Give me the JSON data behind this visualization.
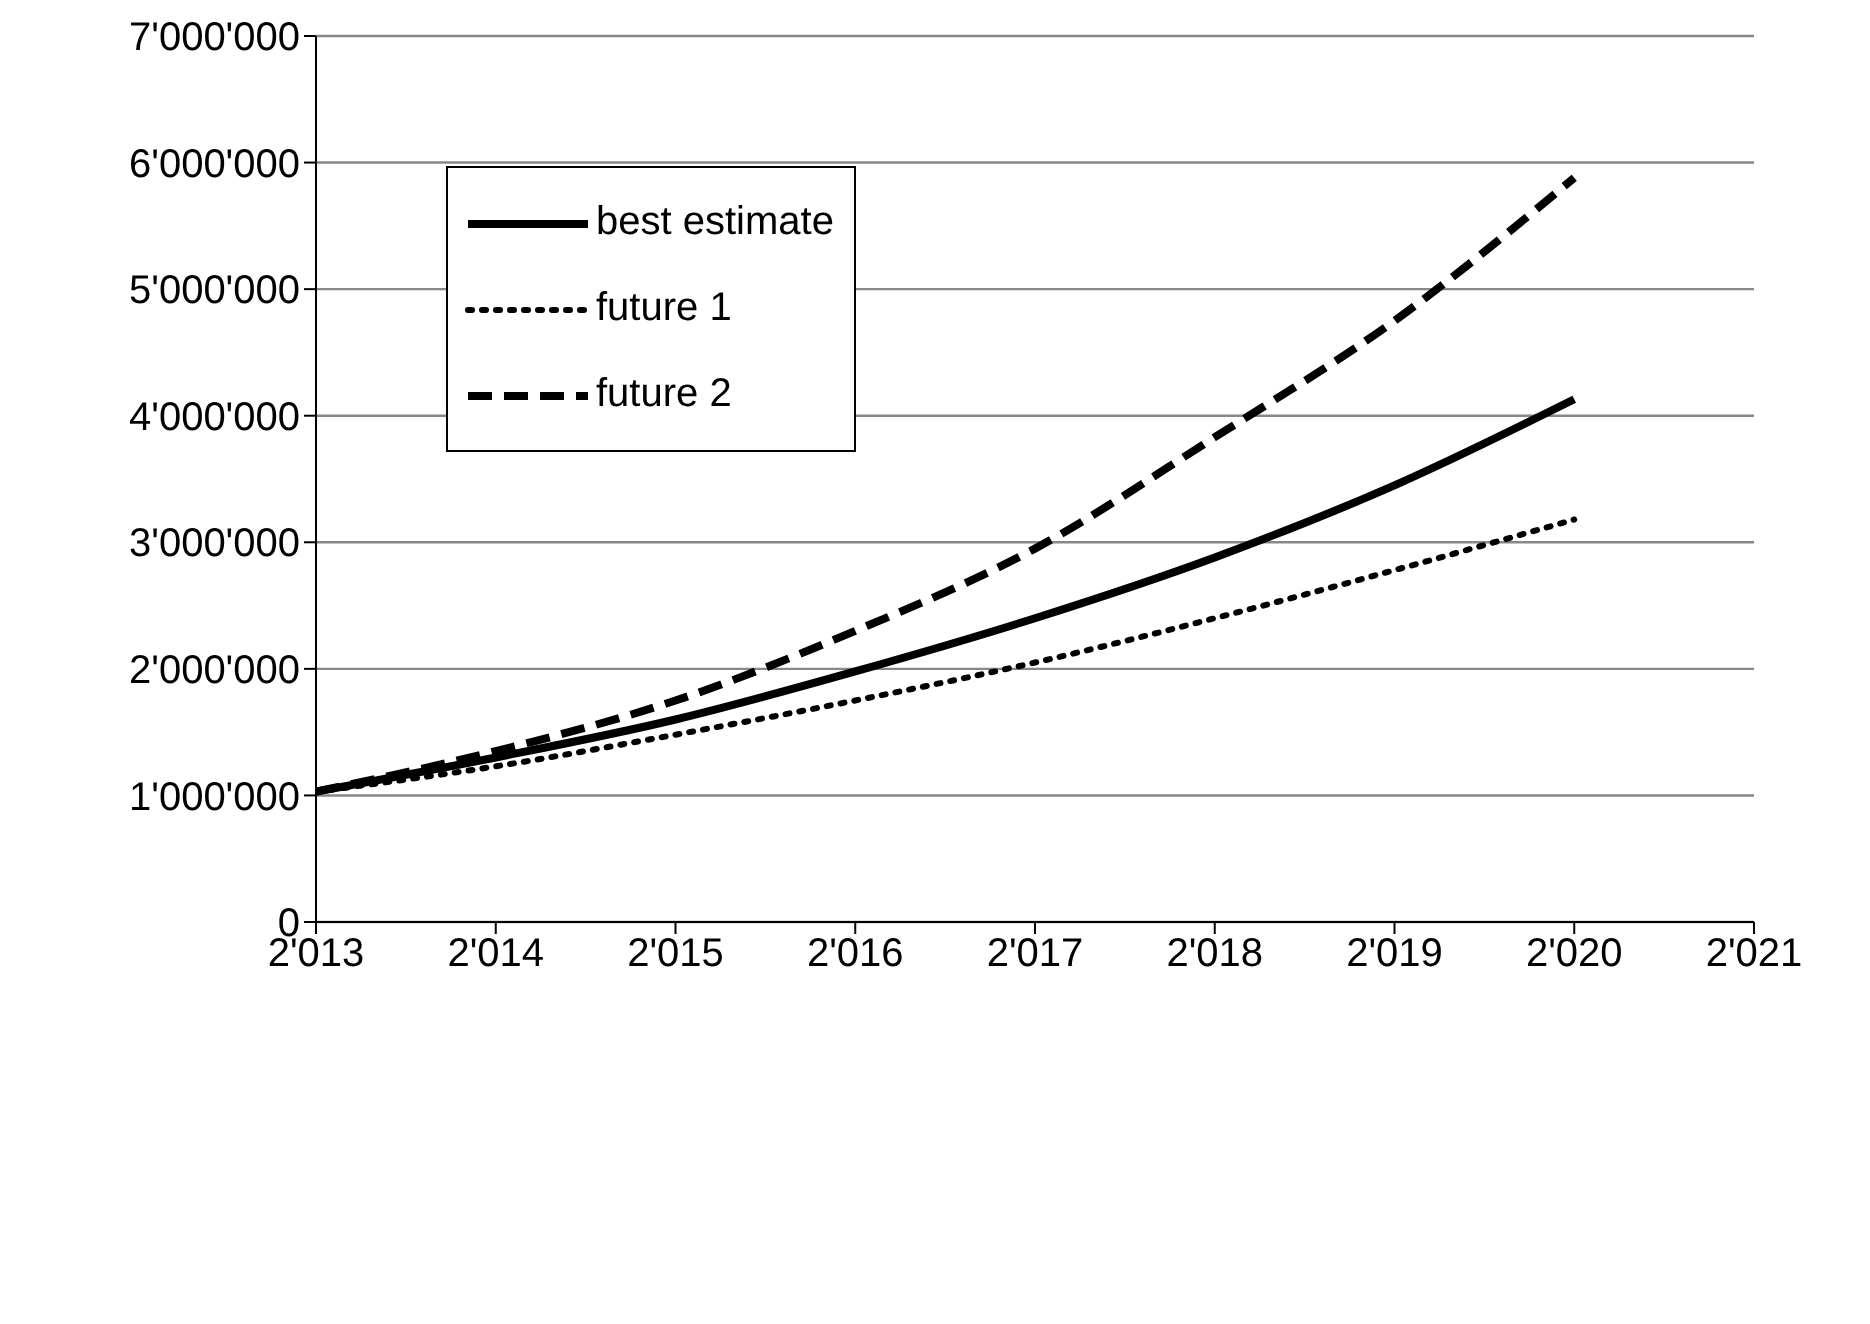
{
  "chart_data": {
    "type": "line",
    "x": [
      2013,
      2014,
      2015,
      2016,
      2017,
      2018,
      2019,
      2020
    ],
    "series": [
      {
        "name": "best estimate",
        "color": "#000000",
        "line_style": "solid",
        "values": [
          1030000,
          1300000,
          1600000,
          1980000,
          2400000,
          2880000,
          3450000,
          4130000
        ]
      },
      {
        "name": "future 1",
        "color": "#000000",
        "line_style": "dotted",
        "values": [
          1030000,
          1230000,
          1480000,
          1750000,
          2050000,
          2400000,
          2780000,
          3180000
        ]
      },
      {
        "name": "future 2",
        "color": "#000000",
        "line_style": "dashed",
        "values": [
          1030000,
          1350000,
          1750000,
          2300000,
          2950000,
          3830000,
          4750000,
          5880000
        ]
      }
    ],
    "xlim": [
      2013,
      2021
    ],
    "xticks": [
      {
        "value": 2013,
        "label": "2'013"
      },
      {
        "value": 2014,
        "label": "2'014"
      },
      {
        "value": 2015,
        "label": "2'015"
      },
      {
        "value": 2016,
        "label": "2'016"
      },
      {
        "value": 2017,
        "label": "2'017"
      },
      {
        "value": 2018,
        "label": "2'018"
      },
      {
        "value": 2019,
        "label": "2'019"
      },
      {
        "value": 2020,
        "label": "2'020"
      },
      {
        "value": 2021,
        "label": "2'021"
      }
    ],
    "ylim": [
      0,
      7000000
    ],
    "yticks": [
      0,
      {
        "value": 1000000,
        "label": "1'000'000"
      },
      {
        "value": 2000000,
        "label": "2'000'000"
      },
      {
        "value": 3000000,
        "label": "3'000'000"
      },
      {
        "value": 4000000,
        "label": "4'000'000"
      },
      {
        "value": 5000000,
        "label": "5'000'000"
      },
      {
        "value": 6000000,
        "label": "6'000'000"
      },
      {
        "value": 7000000,
        "label": "7'000'000"
      }
    ],
    "grid": "y",
    "legend": "top left",
    "marker": "none"
  }
}
